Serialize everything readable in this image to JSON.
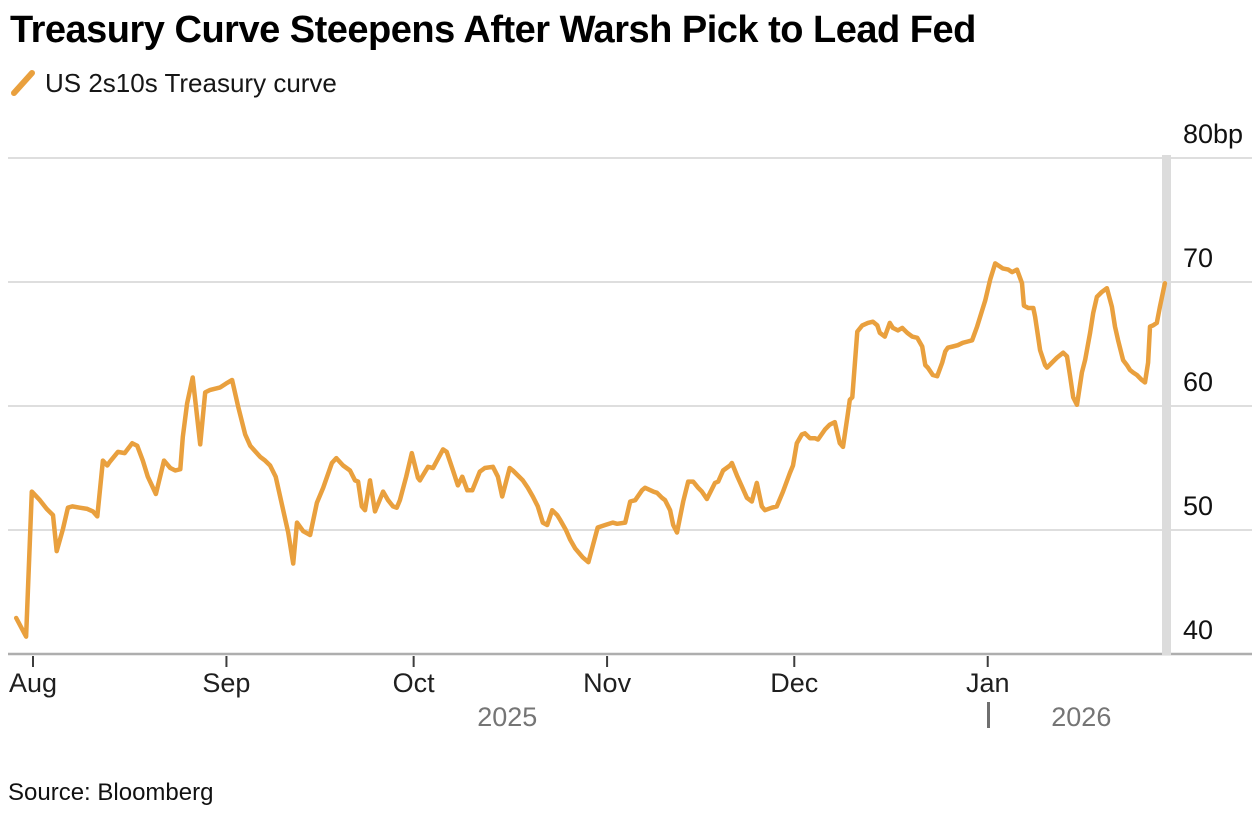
{
  "header": {
    "title": "Treasury Curve Steepens After Warsh Pick to Lead Fed",
    "legend_label": "US 2s10s Treasury curve"
  },
  "footer": {
    "source": "Source: Bloomberg"
  },
  "chart_data": {
    "type": "line",
    "title": "Treasury Curve Steepens After Warsh Pick to Lead Fed",
    "series_name": "US 2s10s Treasury curve",
    "unit": "bp",
    "line_color": "#E9A03E",
    "grid_color": "#d4d4d4",
    "baseline_color": "#aeaeae",
    "tick_color": "#3d3d3d",
    "end_bar_color": "#dcdcdc",
    "ylim": [
      40,
      80
    ],
    "grid": true,
    "legend_position": "top-left",
    "y_ticks": [
      {
        "label": "80bp",
        "value": 80
      },
      {
        "label": "70",
        "value": 70
      },
      {
        "label": "60",
        "value": 60
      },
      {
        "label": "50",
        "value": 50
      },
      {
        "label": "40",
        "value": 40
      }
    ],
    "x_ticks": [
      {
        "label": "Aug",
        "day": 0
      },
      {
        "label": "Sep",
        "day": 31
      },
      {
        "label": "Oct",
        "day": 61
      },
      {
        "label": "Nov",
        "day": 92
      },
      {
        "label": "Dec",
        "day": 122
      },
      {
        "label": "Jan",
        "day": 153
      }
    ],
    "year_labels": [
      {
        "label": "2025",
        "center_day": 76
      },
      {
        "label": "2026",
        "center_day": 168
      }
    ],
    "year_divider_day": 153,
    "points": [
      [
        -2.7,
        42.9
      ],
      [
        -1.1,
        41.4
      ],
      [
        -0.2,
        53.1
      ],
      [
        1.1,
        52.4
      ],
      [
        2.2,
        51.7
      ],
      [
        3.2,
        51.2
      ],
      [
        3.8,
        48.3
      ],
      [
        4.8,
        50.1
      ],
      [
        5.6,
        51.8
      ],
      [
        6.3,
        51.9
      ],
      [
        7.5,
        51.8
      ],
      [
        8.7,
        51.7
      ],
      [
        9.6,
        51.5
      ],
      [
        10.3,
        51.1
      ],
      [
        11.2,
        55.6
      ],
      [
        11.9,
        55.2
      ],
      [
        12.3,
        55.5
      ],
      [
        13.6,
        56.3
      ],
      [
        14.7,
        56.2
      ],
      [
        15.9,
        57.0
      ],
      [
        16.7,
        56.8
      ],
      [
        17.6,
        55.6
      ],
      [
        18.4,
        54.3
      ],
      [
        19.7,
        52.9
      ],
      [
        21.0,
        55.6
      ],
      [
        22.0,
        55.0
      ],
      [
        22.8,
        54.8
      ],
      [
        23.6,
        54.9
      ],
      [
        24.0,
        57.5
      ],
      [
        24.7,
        60.2
      ],
      [
        25.6,
        62.3
      ],
      [
        26.8,
        56.9
      ],
      [
        27.6,
        61.1
      ],
      [
        28.4,
        61.3
      ],
      [
        30.0,
        61.5
      ],
      [
        30.9,
        61.8
      ],
      [
        31.9,
        62.1
      ],
      [
        32.9,
        59.9
      ],
      [
        34.0,
        57.7
      ],
      [
        34.8,
        56.8
      ],
      [
        36.4,
        55.9
      ],
      [
        37.2,
        55.6
      ],
      [
        38.0,
        55.2
      ],
      [
        38.9,
        54.3
      ],
      [
        40.1,
        51.6
      ],
      [
        40.9,
        49.8
      ],
      [
        41.7,
        47.3
      ],
      [
        42.3,
        50.6
      ],
      [
        43.3,
        49.9
      ],
      [
        44.4,
        49.6
      ],
      [
        45.5,
        52.2
      ],
      [
        46.5,
        53.4
      ],
      [
        47.9,
        55.4
      ],
      [
        48.6,
        55.8
      ],
      [
        49.7,
        55.2
      ],
      [
        50.8,
        54.8
      ],
      [
        51.6,
        54.0
      ],
      [
        52.1,
        53.9
      ],
      [
        52.7,
        51.9
      ],
      [
        53.2,
        51.6
      ],
      [
        54.0,
        54.0
      ],
      [
        54.8,
        51.5
      ],
      [
        56.1,
        53.1
      ],
      [
        56.9,
        52.4
      ],
      [
        57.7,
        51.9
      ],
      [
        58.3,
        51.8
      ],
      [
        58.8,
        52.4
      ],
      [
        59.8,
        54.3
      ],
      [
        60.7,
        56.2
      ],
      [
        61.7,
        54.2
      ],
      [
        62.0,
        54.0
      ],
      [
        63.3,
        55.1
      ],
      [
        64.1,
        55.0
      ],
      [
        65.7,
        56.5
      ],
      [
        66.3,
        56.3
      ],
      [
        67.3,
        54.8
      ],
      [
        68.1,
        53.6
      ],
      [
        68.8,
        54.3
      ],
      [
        69.6,
        53.2
      ],
      [
        70.4,
        53.2
      ],
      [
        71.6,
        54.7
      ],
      [
        72.4,
        55.0
      ],
      [
        73.7,
        55.1
      ],
      [
        74.5,
        54.3
      ],
      [
        75.2,
        52.7
      ],
      [
        76.4,
        55.0
      ],
      [
        76.9,
        54.8
      ],
      [
        77.7,
        54.4
      ],
      [
        78.5,
        54.0
      ],
      [
        79.3,
        53.4
      ],
      [
        80.1,
        52.7
      ],
      [
        80.9,
        51.9
      ],
      [
        81.7,
        50.6
      ],
      [
        82.4,
        50.4
      ],
      [
        83.2,
        51.6
      ],
      [
        84.0,
        51.2
      ],
      [
        84.5,
        50.8
      ],
      [
        85.4,
        50.0
      ],
      [
        86.1,
        49.2
      ],
      [
        86.9,
        48.5
      ],
      [
        88.1,
        47.8
      ],
      [
        89.0,
        47.4
      ],
      [
        90.5,
        50.2
      ],
      [
        91.7,
        50.4
      ],
      [
        92.9,
        50.6
      ],
      [
        93.6,
        50.5
      ],
      [
        94.9,
        50.6
      ],
      [
        95.7,
        52.3
      ],
      [
        96.5,
        52.4
      ],
      [
        97.6,
        53.2
      ],
      [
        98.1,
        53.4
      ],
      [
        99.4,
        53.1
      ],
      [
        100.0,
        53.0
      ],
      [
        100.8,
        52.6
      ],
      [
        101.3,
        52.4
      ],
      [
        102.1,
        51.6
      ],
      [
        102.6,
        50.4
      ],
      [
        103.2,
        49.8
      ],
      [
        104.2,
        52.3
      ],
      [
        105.0,
        53.9
      ],
      [
        105.8,
        53.9
      ],
      [
        106.6,
        53.4
      ],
      [
        107.2,
        53.1
      ],
      [
        108.0,
        52.5
      ],
      [
        109.3,
        53.8
      ],
      [
        109.8,
        53.9
      ],
      [
        110.6,
        54.8
      ],
      [
        111.7,
        55.2
      ],
      [
        112.0,
        55.4
      ],
      [
        112.8,
        54.4
      ],
      [
        113.6,
        53.5
      ],
      [
        114.4,
        52.6
      ],
      [
        115.2,
        52.3
      ],
      [
        116.0,
        53.8
      ],
      [
        116.8,
        51.9
      ],
      [
        117.3,
        51.6
      ],
      [
        118.4,
        51.8
      ],
      [
        119.2,
        51.9
      ],
      [
        120.2,
        53.1
      ],
      [
        121.3,
        54.6
      ],
      [
        121.8,
        55.2
      ],
      [
        122.4,
        57.0
      ],
      [
        123.2,
        57.7
      ],
      [
        123.7,
        57.8
      ],
      [
        124.5,
        57.4
      ],
      [
        125.3,
        57.4
      ],
      [
        125.8,
        57.3
      ],
      [
        126.9,
        58.1
      ],
      [
        127.7,
        58.5
      ],
      [
        128.5,
        58.7
      ],
      [
        129.3,
        57.0
      ],
      [
        129.8,
        56.7
      ],
      [
        130.6,
        59.4
      ],
      [
        130.9,
        60.5
      ],
      [
        131.3,
        60.7
      ],
      [
        132.1,
        66.0
      ],
      [
        132.9,
        66.5
      ],
      [
        133.8,
        66.7
      ],
      [
        134.6,
        66.8
      ],
      [
        135.3,
        66.5
      ],
      [
        135.7,
        65.9
      ],
      [
        136.5,
        65.6
      ],
      [
        137.3,
        66.7
      ],
      [
        137.8,
        66.3
      ],
      [
        138.6,
        66.1
      ],
      [
        139.3,
        66.3
      ],
      [
        140.1,
        65.9
      ],
      [
        140.9,
        65.6
      ],
      [
        141.7,
        65.5
      ],
      [
        142.5,
        64.8
      ],
      [
        143.0,
        63.3
      ],
      [
        143.4,
        63.1
      ],
      [
        144.2,
        62.5
      ],
      [
        144.9,
        62.4
      ],
      [
        145.7,
        63.5
      ],
      [
        146.2,
        64.4
      ],
      [
        146.6,
        64.7
      ],
      [
        147.4,
        64.8
      ],
      [
        148.2,
        64.9
      ],
      [
        149.0,
        65.1
      ],
      [
        149.8,
        65.2
      ],
      [
        150.5,
        65.3
      ],
      [
        151.3,
        66.4
      ],
      [
        152.1,
        67.7
      ],
      [
        152.6,
        68.5
      ],
      [
        153.4,
        70.2
      ],
      [
        154.2,
        71.5
      ],
      [
        155.4,
        71.1
      ],
      [
        156.3,
        71.0
      ],
      [
        156.9,
        70.8
      ],
      [
        157.7,
        71.0
      ],
      [
        158.5,
        69.9
      ],
      [
        158.8,
        68.1
      ],
      [
        159.5,
        67.9
      ],
      [
        160.3,
        67.9
      ],
      [
        160.6,
        67.2
      ],
      [
        161.4,
        64.5
      ],
      [
        162.2,
        63.3
      ],
      [
        162.5,
        63.1
      ],
      [
        163.3,
        63.5
      ],
      [
        164.1,
        63.9
      ],
      [
        165.1,
        64.3
      ],
      [
        165.7,
        64.0
      ],
      [
        166.2,
        62.4
      ],
      [
        166.7,
        60.7
      ],
      [
        167.3,
        60.1
      ],
      [
        168.1,
        62.7
      ],
      [
        168.6,
        63.7
      ],
      [
        169.4,
        65.9
      ],
      [
        169.9,
        67.5
      ],
      [
        170.5,
        68.8
      ],
      [
        171.3,
        69.2
      ],
      [
        172.1,
        69.5
      ],
      [
        172.9,
        68.0
      ],
      [
        173.4,
        66.4
      ],
      [
        173.9,
        65.3
      ],
      [
        174.7,
        63.7
      ],
      [
        175.3,
        63.3
      ],
      [
        175.8,
        62.9
      ],
      [
        176.3,
        62.7
      ],
      [
        176.9,
        62.5
      ],
      [
        177.7,
        62.1
      ],
      [
        178.2,
        61.9
      ],
      [
        178.7,
        63.5
      ],
      [
        179.0,
        66.4
      ],
      [
        179.5,
        66.5
      ],
      [
        180.1,
        66.7
      ],
      [
        180.6,
        68.0
      ],
      [
        181.4,
        69.9
      ]
    ]
  }
}
